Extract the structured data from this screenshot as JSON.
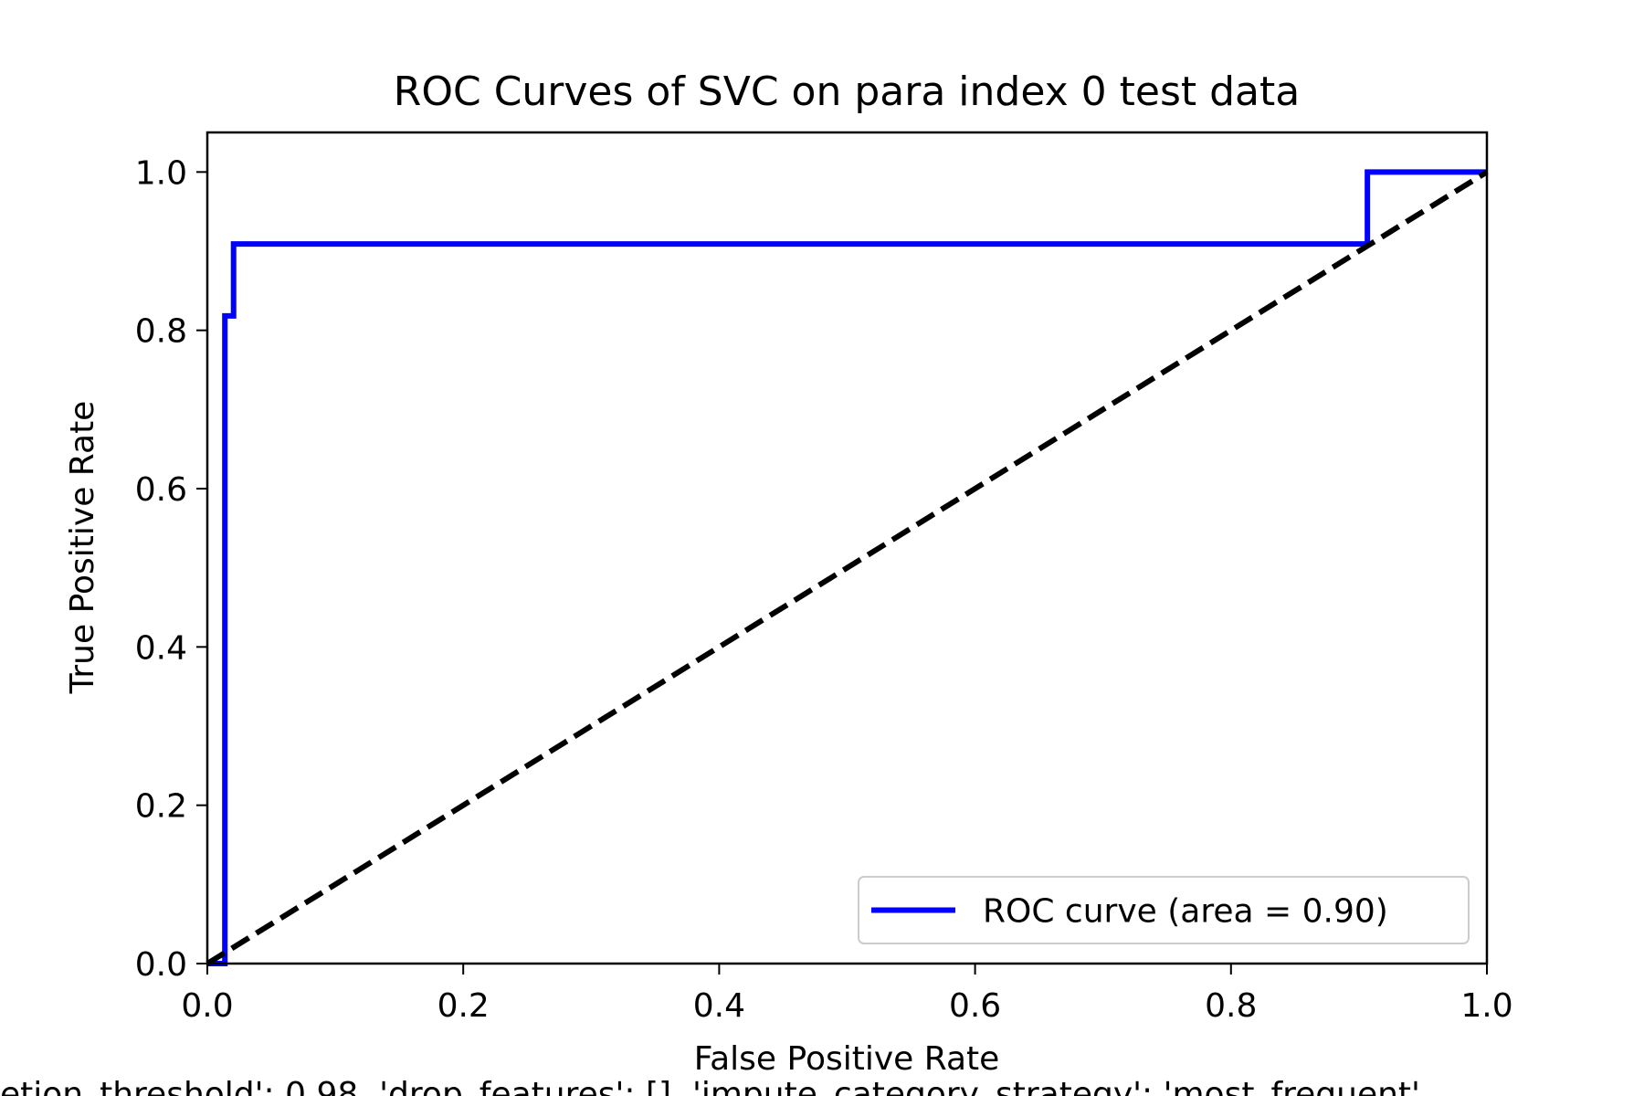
{
  "chart_data": {
    "type": "line",
    "title": "ROC Curves of SVC on para index 0 test data",
    "xlabel": "False Positive Rate",
    "ylabel": "True Positive Rate",
    "xlim": [
      0.0,
      1.0
    ],
    "ylim": [
      0.0,
      1.05
    ],
    "x_ticks": [
      "0.0",
      "0.2",
      "0.4",
      "0.6",
      "0.8",
      "1.0"
    ],
    "y_ticks": [
      "0.0",
      "0.2",
      "0.4",
      "0.6",
      "0.8",
      "1.0"
    ],
    "grid": false,
    "legend_position": "lower-right",
    "footer_text": "etion_threshold': 0.98, 'drop_features': [], 'impute_category_strategy': 'most_frequent'",
    "series": [
      {
        "name": "ROC curve (area = 0.90)",
        "color": "#0000ff",
        "style": "solid",
        "x": [
          0.0,
          0.0,
          0.0137,
          0.0137,
          0.0137,
          0.0205,
          0.0205,
          0.9066,
          0.9066,
          1.0
        ],
        "y": [
          0.0,
          0.0,
          0.0,
          0.8182,
          0.8182,
          0.8182,
          0.9091,
          0.9091,
          1.0,
          1.0
        ]
      },
      {
        "name": "",
        "color": "#000000",
        "style": "dashed",
        "x": [
          0.0,
          1.0
        ],
        "y": [
          0.0,
          1.0
        ]
      }
    ]
  }
}
